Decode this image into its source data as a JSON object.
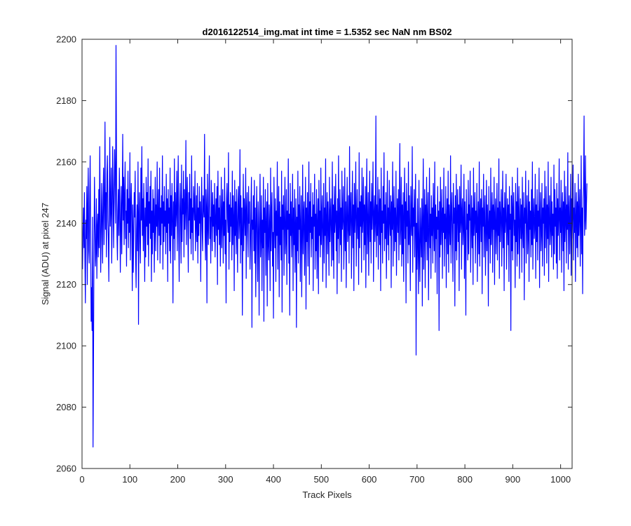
{
  "chart_data": {
    "type": "line",
    "title": "d2016122514_img.mat int time = 1.5352 sec  NaN nm BS02",
    "xlabel": "Track Pixels",
    "ylabel": "Signal (ADU) at pixel 247",
    "xlim": [
      0,
      1024
    ],
    "ylim": [
      2060,
      2200
    ],
    "xticks": [
      0,
      100,
      200,
      300,
      400,
      500,
      600,
      700,
      800,
      900,
      1000
    ],
    "yticks": [
      2060,
      2080,
      2100,
      2120,
      2140,
      2160,
      2180,
      2200
    ],
    "xtick_labels": [
      "0",
      "100",
      "200",
      "300",
      "400",
      "500",
      "600",
      "700",
      "800",
      "900",
      "1000"
    ],
    "ytick_labels": [
      "2060",
      "2080",
      "2100",
      "2120",
      "2140",
      "2160",
      "2180",
      "2200"
    ],
    "grid": false,
    "box": true,
    "line_color": "#0000ff",
    "axis_color": "#262626",
    "series": [
      {
        "x_start": 1,
        "x_step": 1,
        "values": [
          2125,
          2138,
          2145,
          2132,
          2150,
          2128,
          2114,
          2141,
          2135,
          2152,
          2120,
          2146,
          2158,
          2131,
          2127,
          2147,
          2162,
          2136,
          2108,
          2119,
          2105,
          2142,
          2067,
          2098,
          2133,
          2155,
          2140,
          2126,
          2131,
          2148,
          2122,
          2139,
          2143,
          2129,
          2151,
          2132,
          2165,
          2144,
          2124,
          2136,
          2153,
          2141,
          2127,
          2149,
          2158,
          2133,
          2146,
          2173,
          2138,
          2150,
          2129,
          2156,
          2162,
          2141,
          2135,
          2121,
          2150,
          2168,
          2139,
          2145,
          2158,
          2127,
          2143,
          2165,
          2151,
          2132,
          2147,
          2164,
          2154,
          2140,
          2198,
          2162,
          2136,
          2128,
          2144,
          2151,
          2136,
          2158,
          2147,
          2124,
          2139,
          2152,
          2130,
          2146,
          2169,
          2141,
          2155,
          2133,
          2149,
          2160,
          2135,
          2144,
          2126,
          2151,
          2140,
          2157,
          2132,
          2148,
          2137,
          2163,
          2128,
          2145,
          2153,
          2139,
          2118,
          2146,
          2124,
          2135,
          2150,
          2142,
          2157,
          2129,
          2119,
          2138,
          2146,
          2131,
          2160,
          2107,
          2143,
          2150,
          2134,
          2127,
          2158,
          2141,
          2165,
          2136,
          2148,
          2131,
          2153,
          2142,
          2121,
          2145,
          2129,
          2155,
          2139,
          2150,
          2133,
          2161,
          2126,
          2147,
          2140,
          2152,
          2135,
          2157,
          2121,
          2144,
          2130,
          2151,
          2137,
          2148,
          2124,
          2142,
          2155,
          2131,
          2146,
          2139,
          2160,
          2128,
          2143,
          2151,
          2136,
          2158,
          2127,
          2145,
          2133,
          2149,
          2140,
          2162,
          2125,
          2147,
          2134,
          2152,
          2139,
          2144,
          2130,
          2156,
          2137,
          2148,
          2121,
          2151,
          2140,
          2145,
          2131,
          2158,
          2127,
          2149,
          2136,
          2153,
          2142,
          2114,
          2147,
          2135,
          2161,
          2128,
          2150,
          2139,
          2144,
          2157,
          2131,
          2148,
          2162,
          2136,
          2121,
          2145,
          2153,
          2140,
          2127,
          2159,
          2134,
          2148,
          2143,
          2157,
          2129,
          2151,
          2138,
          2144,
          2167,
          2133,
          2147,
          2155,
          2139,
          2124,
          2150,
          2141,
          2156,
          2135,
          2148,
          2130,
          2162,
          2137,
          2145,
          2128,
          2152,
          2146,
          2141,
          2157,
          2131,
          2139,
          2149,
          2134,
          2153,
          2127,
          2145,
          2136,
          2152,
          2140,
          2147,
          2121,
          2144,
          2155,
          2138,
          2131,
          2149,
          2146,
          2142,
          2169,
          2137,
          2128,
          2151,
          2145,
          2114,
          2156,
          2140,
          2133,
          2148,
          2162,
          2135,
          2142,
          2127,
          2154,
          2145,
          2131,
          2150,
          2139,
          2146,
          2134,
          2153,
          2129,
          2141,
          2148,
          2136,
          2152,
          2120,
          2157,
          2138,
          2145,
          2133,
          2149,
          2126,
          2139,
          2155,
          2132,
          2143,
          2151,
          2127,
          2147,
          2136,
          2158,
          2130,
          2141,
          2114,
          2148,
          2153,
          2142,
          2137,
          2163,
          2125,
          2146,
          2134,
          2150,
          2139,
          2145,
          2128,
          2157,
          2133,
          2149,
          2142,
          2118,
          2154,
          2136,
          2147,
          2130,
          2151,
          2140,
          2124,
          2146,
          2152,
          2135,
          2141,
          2164,
          2127,
          2149,
          2133,
          2145,
          2110,
          2139,
          2156,
          2131,
          2148,
          2142,
          2136,
          2158,
          2122,
          2144,
          2150,
          2137,
          2129,
          2152,
          2140,
          2147,
          2125,
          2133,
          2146,
          2155,
          2106,
          2141,
          2138,
          2149,
          2131,
          2154,
          2127,
          2145,
          2116,
          2140,
          2152,
          2134,
          2121,
          2147,
          2138,
          2110,
          2143,
          2156,
          2129,
          2136,
          2149,
          2118,
          2141,
          2132,
          2155,
          2108,
          2145,
          2137,
          2151,
          2123,
          2140,
          2147,
          2113,
          2153,
          2134,
          2128,
          2146,
          2139,
          2118,
          2158,
          2131,
          2143,
          2150,
          2126,
          2137,
          2109,
          2155,
          2141,
          2132,
          2148,
          2121,
          2144,
          2136,
          2160,
          2125,
          2139,
          2152,
          2116,
          2147,
          2133,
          2142,
          2128,
          2157,
          2111,
          2146,
          2138,
          2149,
          2123,
          2141,
          2155,
          2130,
          2135,
          2151,
          2120,
          2144,
          2138,
          2161,
          2127,
          2143,
          2110,
          2153,
          2136,
          2147,
          2129,
          2140,
          2156,
          2118,
          2145,
          2133,
          2151,
          2124,
          2139,
          2148,
          2106,
          2142,
          2131,
          2157,
          2127,
          2146,
          2138,
          2152,
          2121,
          2140,
          2149,
          2116,
          2135,
          2159,
          2130,
          2143,
          2147,
          2123,
          2138,
          2155,
          2112,
          2145,
          2134,
          2150,
          2126,
          2141,
          2160,
          2120,
          2147,
          2137,
          2153,
          2129,
          2142,
          2135,
          2150,
          2118,
          2146,
          2139,
          2156,
          2125,
          2143,
          2131,
          2151,
          2122,
          2140,
          2148,
          2117,
          2154,
          2136,
          2144,
          2129,
          2158,
          2133,
          2142,
          2149,
          2121,
          2138,
          2153,
          2127,
          2145,
          2136,
          2161,
          2119,
          2141,
          2150,
          2130,
          2147,
          2138,
          2123,
          2155,
          2134,
          2143,
          2148,
          2126,
          2139,
          2160,
          2128,
          2146,
          2122,
          2152,
          2137,
          2141,
          2156,
          2131,
          2144,
          2117,
          2148,
          2135,
          2162,
          2127,
          2140,
          2151,
          2133,
          2145,
          2121,
          2157,
          2138,
          2142,
          2152,
          2125,
          2136,
          2158,
          2131,
          2147,
          2119,
          2143,
          2155,
          2134,
          2139,
          2149,
          2127,
          2165,
          2136,
          2144,
          2150,
          2122,
          2141,
          2157,
          2132,
          2146,
          2118,
          2153,
          2137,
          2143,
          2160,
          2126,
          2140,
          2151,
          2135,
          2145,
          2120,
          2163,
          2132,
          2147,
          2139,
          2149,
          2124,
          2158,
          2137,
          2142,
          2155,
          2128,
          2146,
          2133,
          2152,
          2119,
          2144,
          2161,
          2130,
          2139,
          2150,
          2123,
          2141,
          2157,
          2134,
          2147,
          2127,
          2153,
          2138,
          2145,
          2160,
          2121,
          2143,
          2149,
          2134,
          2140,
          2175,
          2129,
          2146,
          2136,
          2155,
          2125,
          2142,
          2151,
          2133,
          2148,
          2118,
          2158,
          2137,
          2144,
          2127,
          2152,
          2140,
          2163,
          2131,
          2146,
          2135,
          2150,
          2122,
          2139,
          2157,
          2133,
          2145,
          2128,
          2154,
          2141,
          2136,
          2149,
          2119,
          2147,
          2138,
          2160,
          2126,
          2143,
          2152,
          2131,
          2145,
          2134,
          2157,
          2123,
          2140,
          2148,
          2137,
          2151,
          2128,
          2144,
          2166,
          2133,
          2139,
          2155,
          2126,
          2146,
          2130,
          2150,
          2121,
          2142,
          2158,
          2135,
          2147,
          2114,
          2153,
          2139,
          2144,
          2127,
          2160,
          2133,
          2149,
          2137,
          2118,
          2152,
          2141,
          2136,
          2165,
          2124,
          2145,
          2139,
          2151,
          2129,
          2143,
          2156,
          2097,
          2140,
          2125,
          2148,
          2133,
          2117,
          2154,
          2130,
          2121,
          2145,
          2136,
          2129,
          2148,
          2113,
          2142,
          2161,
          2125,
          2139,
          2151,
          2119,
          2146,
          2134,
          2155,
          2128,
          2141,
          2150,
          2115,
          2137,
          2158,
          2132,
          2143,
          2122,
          2149,
          2136,
          2145,
          2127,
          2153,
          2140,
          2131,
          2160,
          2124,
          2146,
          2135,
          2142,
          2117,
          2152,
          2138,
          2144,
          2105,
          2147,
          2129,
          2155,
          2133,
          2140,
          2151,
          2122,
          2145,
          2137,
          2158,
          2126,
          2143,
          2135,
          2152,
          2119,
          2141,
          2148,
          2130,
          2157,
          2124,
          2146,
          2139,
          2133,
          2162,
          2127,
          2144,
          2150,
          2136,
          2121,
          2153,
          2140,
          2145,
          2113,
          2149,
          2131,
          2156,
          2128,
          2142,
          2151,
          2134,
          2146,
          2118,
          2152,
          2137,
          2141,
          2159,
          2125,
          2144,
          2148,
          2133,
          2139,
          2156,
          2122,
          2147,
          2135,
          2110,
          2151,
          2138,
          2143,
          2128,
          2154,
          2130,
          2146,
          2141,
          2157,
          2124,
          2139,
          2149,
          2132,
          2145,
          2120,
          2158,
          2136,
          2142,
          2150,
          2127,
          2144,
          2137,
          2153,
          2121,
          2141,
          2147,
          2130,
          2160,
          2126,
          2143,
          2148,
          2134,
          2151,
          2117,
          2145,
          2139,
          2156,
          2129,
          2142,
          2149,
          2123,
          2137,
          2154,
          2131,
          2146,
          2140,
          2113,
          2152,
          2135,
          2144,
          2127,
          2158,
          2133,
          2141,
          2150,
          2124,
          2146,
          2138,
          2155,
          2120,
          2143,
          2148,
          2130,
          2139,
          2153,
          2128,
          2145,
          2136,
          2161,
          2122,
          2147,
          2134,
          2143,
          2151,
          2126,
          2140,
          2157,
          2132,
          2145,
          2118,
          2150,
          2137,
          2142,
          2156,
          2125,
          2139,
          2148,
          2133,
          2146,
          2121,
          2152,
          2138,
          2143,
          2105,
          2149,
          2131,
          2155,
          2128,
          2144,
          2150,
          2136,
          2141,
          2119,
          2153,
          2134,
          2147,
          2126,
          2158,
          2130,
          2143,
          2152,
          2122,
          2140,
          2148,
          2135,
          2146,
          2124,
          2155,
          2138,
          2132,
          2150,
          2115,
          2145,
          2140,
          2157,
          2127,
          2143,
          2149,
          2130,
          2136,
          2154,
          2121,
          2147,
          2138,
          2144,
          2129,
          2151,
          2133,
          2160,
          2125,
          2142,
          2148,
          2135,
          2139,
          2156,
          2122,
          2146,
          2134,
          2151,
          2128,
          2144,
          2139,
          2158,
          2119,
          2143,
          2150,
          2131,
          2137,
          2153,
          2126,
          2145,
          2140,
          2148,
          2123,
          2157,
          2132,
          2141,
          2152,
          2127,
          2146,
          2135,
          2160,
          2121,
          2144,
          2149,
          2133,
          2138,
          2155,
          2129,
          2147,
          2136,
          2143,
          2125,
          2159,
          2130,
          2151,
          2139,
          2145,
          2127,
          2153,
          2122,
          2148,
          2136,
          2142,
          2161,
          2128,
          2145,
          2137,
          2154,
          2124,
          2143,
          2150,
          2131,
          2147,
          2118,
          2157,
          2134,
          2141,
          2152,
          2127,
          2146,
          2138,
          2163,
          2125,
          2144,
          2149,
          2130,
          2140,
          2156,
          2123,
          2148,
          2135,
          2143,
          2159,
          2128,
          2145,
          2137,
          2153,
          2121,
          2142,
          2150,
          2132,
          2147,
          2129,
          2156,
          2136,
          2143,
          2151,
          2126,
          2140,
          2162,
          2130,
          2145,
          2117,
          2148,
          2152,
          2175,
          2136,
          2141,
          2162,
          2138,
          2146,
          2153
        ]
      }
    ]
  }
}
